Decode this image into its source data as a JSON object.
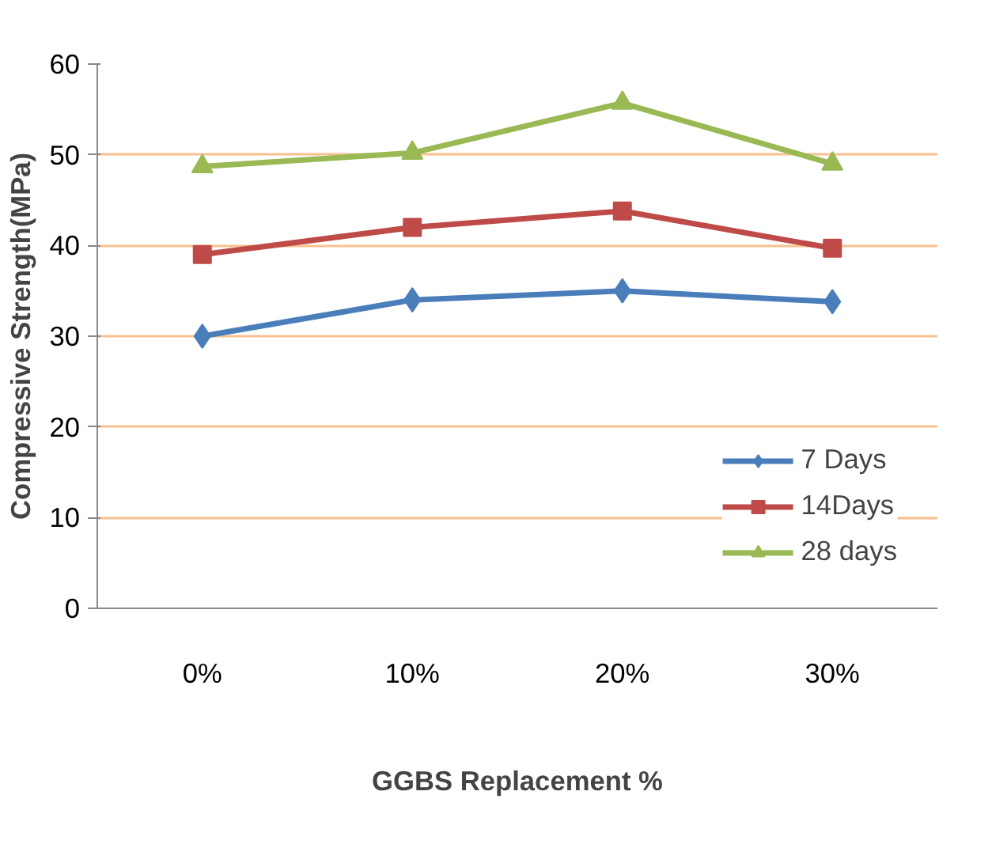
{
  "chart_data": {
    "type": "line",
    "xlabel": "GGBS Replacement %",
    "ylabel": "Compressive Strength(MPa)",
    "categories": [
      "0%",
      "10%",
      "20%",
      "30%"
    ],
    "series": [
      {
        "name": "7 Days",
        "color": "#4a7ebb",
        "marker": "diamond",
        "values": [
          30,
          34,
          35,
          33.8
        ]
      },
      {
        "name": "14Days",
        "color": "#be4b48",
        "marker": "square",
        "values": [
          39,
          42,
          43.8,
          39.7
        ]
      },
      {
        "name": "28 days",
        "color": "#98b954",
        "marker": "triangle",
        "values": [
          48.7,
          50.2,
          55.7,
          49
        ]
      }
    ],
    "ylim": [
      0,
      60
    ],
    "yticks": [
      0,
      10,
      20,
      30,
      40,
      50,
      60
    ],
    "grid": "y",
    "legend": "bottom right",
    "line_style": "solid"
  }
}
